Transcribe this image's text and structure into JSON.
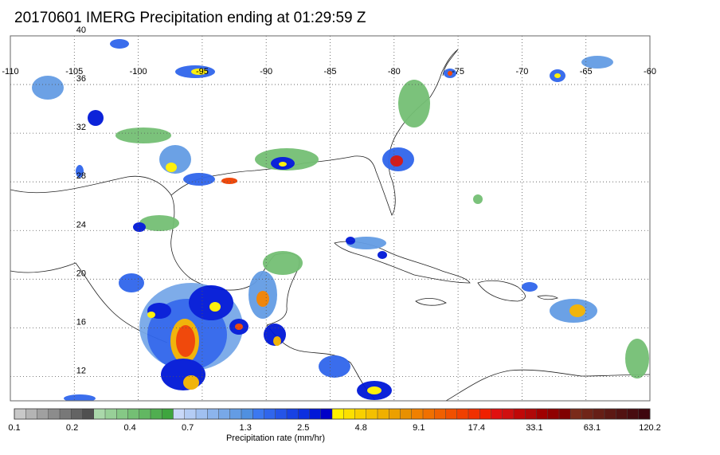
{
  "title": "20170601 IMERG Precipitation ending at 01:29:59 Z",
  "map": {
    "lon_range": [
      -110,
      -60
    ],
    "lat_range": [
      10,
      40
    ],
    "lon_ticks": [
      "-110",
      "-105",
      "-100",
      "-95",
      "-90",
      "-85",
      "-80",
      "-75",
      "-70",
      "-65",
      "-60"
    ],
    "lat_ticks": [
      "12",
      "16",
      "20",
      "24",
      "28",
      "32",
      "36",
      "40"
    ],
    "grid": "dotted"
  },
  "colorbar": {
    "title": "Precipitation rate (mm/hr)",
    "labels": [
      "0.1",
      "0.2",
      "0.4",
      "0.7",
      "1.3",
      "2.5",
      "4.8",
      "9.1",
      "17.4",
      "33.1",
      "63.1",
      "120.2"
    ],
    "colors": [
      "#c8c8c8",
      "#b4b4b4",
      "#a0a0a0",
      "#8c8c8c",
      "#787878",
      "#646464",
      "#505050",
      "#aad8aa",
      "#98d098",
      "#86c886",
      "#74bf74",
      "#62b762",
      "#50ae50",
      "#3ea53e",
      "#c8d8f8",
      "#b4ccf4",
      "#a0c0f0",
      "#8cb4ec",
      "#78a8e8",
      "#649ce4",
      "#5090e0",
      "#3c78f0",
      "#3066ec",
      "#2454e8",
      "#1842e4",
      "#0c30e0",
      "#0018d8",
      "#0000c8",
      "#fff000",
      "#fce000",
      "#f8d000",
      "#f4c000",
      "#f0b000",
      "#eca000",
      "#e89000",
      "#f08000",
      "#f07000",
      "#f06000",
      "#f05000",
      "#f04000",
      "#f03000",
      "#f02000",
      "#e01010",
      "#d01010",
      "#c00808",
      "#b00808",
      "#a00000",
      "#900000",
      "#800000",
      "#7a2a1a",
      "#702418",
      "#661e16",
      "#5c1814",
      "#521212",
      "#480c10",
      "#3e060e"
    ]
  }
}
